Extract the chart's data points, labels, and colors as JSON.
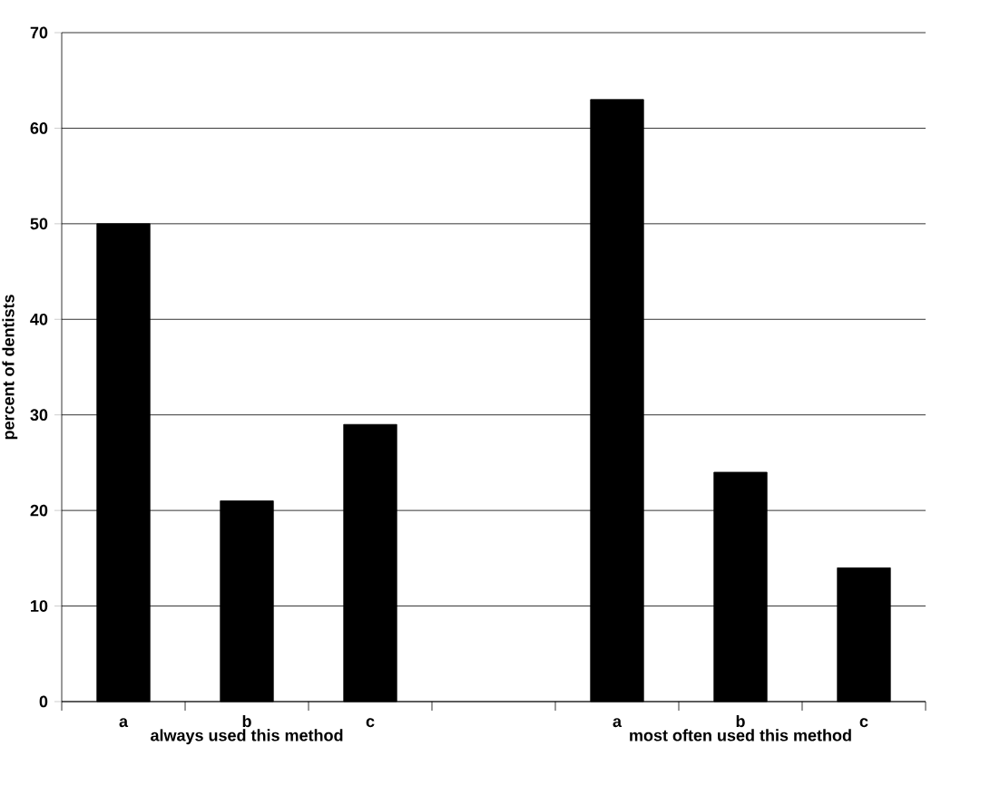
{
  "chart_data": {
    "type": "bar",
    "ylabel": "percent of dentists",
    "categories": [
      "a",
      "b",
      "c",
      null,
      "a",
      "b",
      "c"
    ],
    "values": [
      50,
      21,
      29,
      null,
      63,
      24,
      14
    ],
    "color": "#000000",
    "ylim": [
      0,
      70
    ],
    "yticks": [
      0,
      10,
      20,
      30,
      40,
      50,
      60,
      70
    ],
    "grid": "y",
    "annotations": [
      "always used this method",
      "most often used this method"
    ]
  }
}
